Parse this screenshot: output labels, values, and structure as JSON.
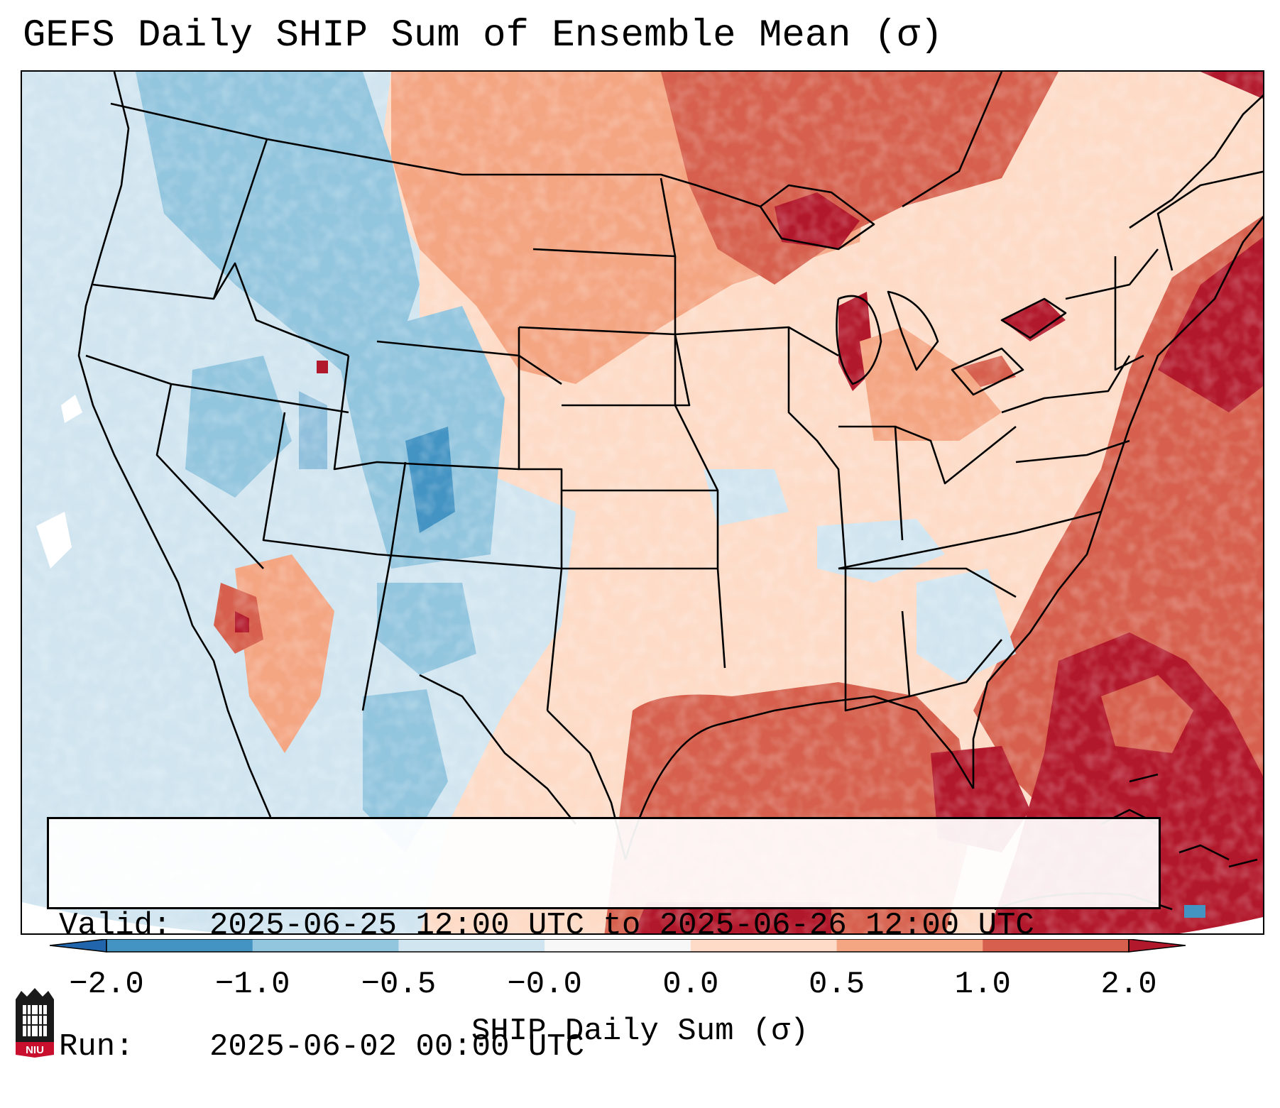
{
  "title": "GEFS Daily SHIP Sum of Ensemble Mean (σ)",
  "info": {
    "valid_label": "Valid:",
    "valid_value": "2025-06-25 12:00 UTC to 2025-06-26 12:00 UTC",
    "run_label": "Run:",
    "run_value": "2025-06-02 00:00 UTC"
  },
  "colorbar": {
    "label": "SHIP Daily Sum (σ)",
    "ticks": [
      "−2.0",
      "−1.0",
      "−0.5",
      "−0.0",
      "0.0",
      "0.5",
      "1.0",
      "2.0"
    ],
    "bin_colors": [
      "#4393c3",
      "#92c5de",
      "#d1e5f0",
      "#f7f7f7",
      "#fddbc7",
      "#f4a582",
      "#d6604d"
    ],
    "under_color": "#2166ac",
    "over_color": "#b2182b"
  },
  "logo": {
    "text": "NIU"
  }
}
